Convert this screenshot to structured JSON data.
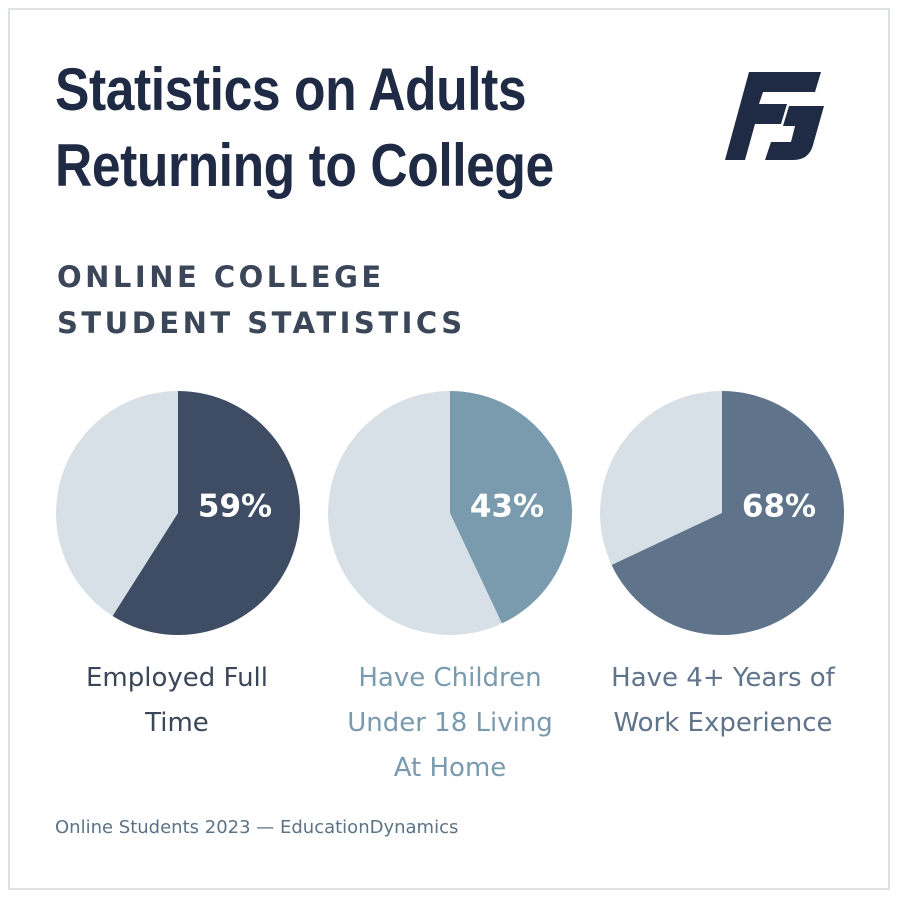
{
  "title_lines": [
    "Statistics on Adults",
    "Returning to College"
  ],
  "subtitle_lines": [
    "ONLINE COLLEGE",
    "STUDENT STATISTICS"
  ],
  "logo": {
    "icon": "stylized-f-logo-icon",
    "color": "#1f2a44"
  },
  "chart_data": [
    {
      "type": "pie",
      "value": 59,
      "unit": "%",
      "label_text": "59%",
      "caption_lines": [
        "Employed Full",
        "Time"
      ],
      "slice_color": "#3e4d63",
      "remainder_color": "#d8e0e7",
      "caption_color": "#3b4759"
    },
    {
      "type": "pie",
      "value": 43,
      "unit": "%",
      "label_text": "43%",
      "caption_lines": [
        "Have Children",
        "Under 18 Living",
        "At Home"
      ],
      "slice_color": "#7a9aae",
      "remainder_color": "#d8e0e7",
      "caption_color": "#7a9aae"
    },
    {
      "type": "pie",
      "value": 68,
      "unit": "%",
      "label_text": "68%",
      "caption_lines": [
        "Have 4+ Years of",
        "Work Experience"
      ],
      "slice_color": "#5f738a",
      "remainder_color": "#d8e0e7",
      "caption_color": "#5f738a"
    }
  ],
  "source": "Online Students 2023 — EducationDynamics"
}
